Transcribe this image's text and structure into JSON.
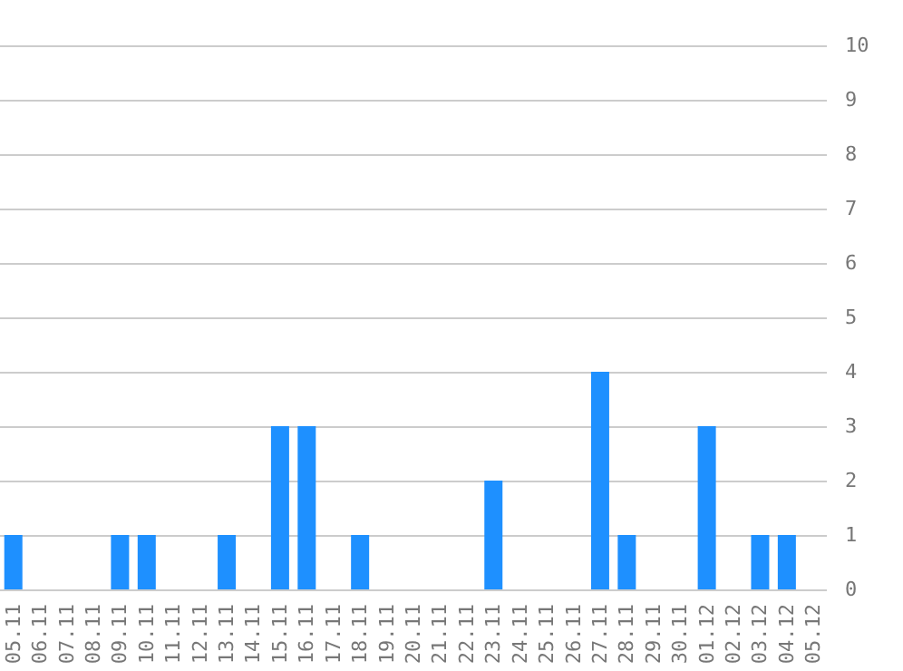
{
  "chart_data": {
    "type": "bar",
    "categories": [
      "05.11",
      "06.11",
      "07.11",
      "08.11",
      "09.11",
      "10.11",
      "11.11",
      "12.11",
      "13.11",
      "14.11",
      "15.11",
      "16.11",
      "17.11",
      "18.11",
      "19.11",
      "20.11",
      "21.11",
      "22.11",
      "23.11",
      "24.11",
      "25.11",
      "26.11",
      "27.11",
      "28.11",
      "29.11",
      "30.11",
      "01.12",
      "02.12",
      "03.12",
      "04.12",
      "05.12"
    ],
    "values": [
      1,
      0,
      0,
      0,
      1,
      1,
      0,
      0,
      1,
      0,
      3,
      3,
      0,
      1,
      0,
      0,
      0,
      0,
      2,
      0,
      0,
      0,
      4,
      1,
      0,
      0,
      3,
      0,
      1,
      1,
      0
    ],
    "color": "#1e90ff",
    "ylim": [
      0,
      10
    ],
    "yticks": [
      0,
      1,
      2,
      3,
      4,
      5,
      6,
      7,
      8,
      9,
      10
    ],
    "grid": "y"
  }
}
